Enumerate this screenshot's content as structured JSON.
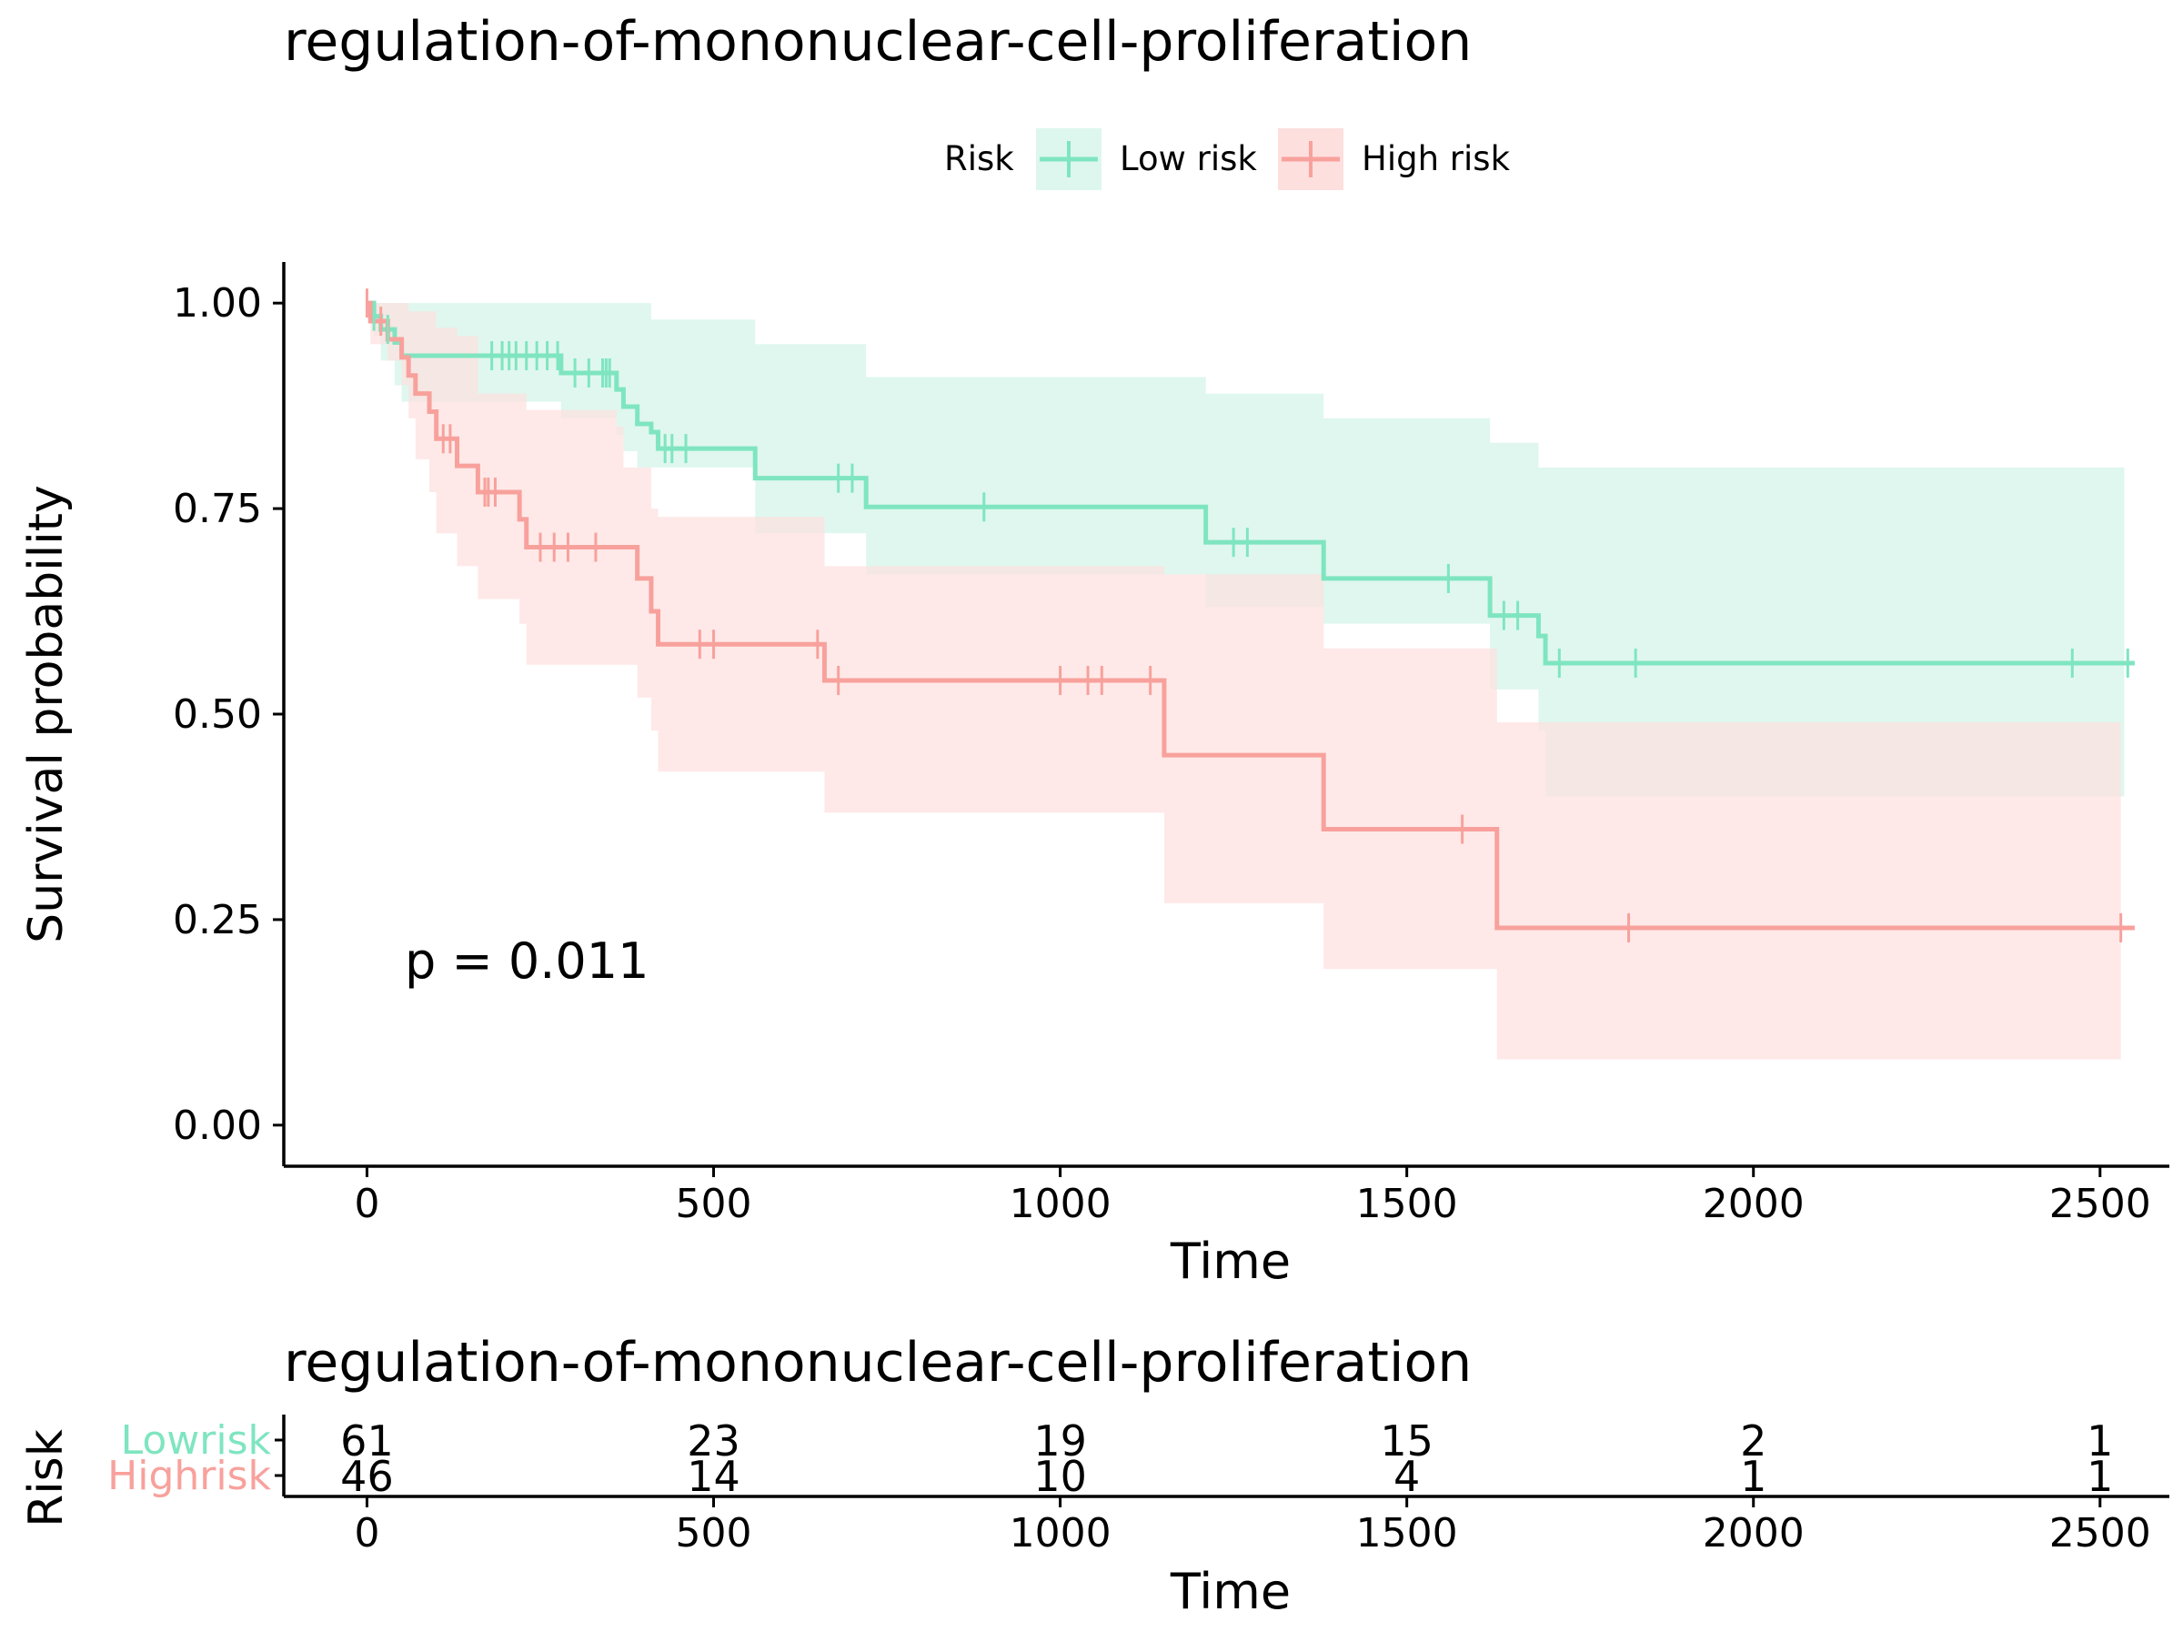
{
  "chart_data": [
    {
      "type": "line",
      "subtype": "kaplan-meier",
      "title": "regulation-of-mononuclear-cell-proliferation",
      "xlabel": "Time",
      "ylabel": "Survival probability",
      "xlim": [
        -120,
        2600
      ],
      "ylim": [
        -0.05,
        1.05
      ],
      "x_ticks": [
        0,
        500,
        1000,
        1500,
        2000,
        2500
      ],
      "x_tick_labels": [
        "0",
        "500",
        "1000",
        "1500",
        "2000",
        "2500"
      ],
      "y_ticks": [
        0,
        0.25,
        0.5,
        0.75,
        1
      ],
      "y_tick_labels": [
        "0.00",
        "0.25",
        "0.50",
        "0.75",
        "1.00"
      ],
      "grid": false,
      "legend": {
        "title": "Risk",
        "position": "top"
      },
      "annotation": "p = 0.011",
      "series": [
        {
          "name": "Low risk",
          "color": "#7FE5C1",
          "fill": "#DDF7EE",
          "steps": [
            [
              0,
              1.0
            ],
            [
              10,
              0.984
            ],
            [
              20,
              0.968
            ],
            [
              40,
              0.952
            ],
            [
              50,
              0.936
            ],
            [
              280,
              0.915
            ],
            [
              360,
              0.895
            ],
            [
              370,
              0.874
            ],
            [
              390,
              0.853
            ],
            [
              410,
              0.843
            ],
            [
              420,
              0.823
            ],
            [
              560,
              0.787
            ],
            [
              720,
              0.752
            ],
            [
              1210,
              0.709
            ],
            [
              1380,
              0.665
            ],
            [
              1620,
              0.62
            ],
            [
              1690,
              0.595
            ],
            [
              1700,
              0.562
            ],
            [
              2550,
              0.562
            ]
          ],
          "ci_lower": [
            [
              0,
              1.0
            ],
            [
              10,
              0.96
            ],
            [
              20,
              0.93
            ],
            [
              40,
              0.9
            ],
            [
              50,
              0.88
            ],
            [
              280,
              0.86
            ],
            [
              360,
              0.84
            ],
            [
              370,
              0.82
            ],
            [
              390,
              0.8
            ],
            [
              410,
              0.8
            ],
            [
              420,
              0.8
            ],
            [
              560,
              0.72
            ],
            [
              720,
              0.67
            ],
            [
              1210,
              0.63
            ],
            [
              1380,
              0.61
            ],
            [
              1620,
              0.53
            ],
            [
              1690,
              0.48
            ],
            [
              1700,
              0.4
            ],
            [
              2535,
              0.4
            ]
          ],
          "ci_upper": [
            [
              0,
              1.0
            ],
            [
              400,
              1.0
            ],
            [
              410,
              0.98
            ],
            [
              560,
              0.95
            ],
            [
              720,
              0.91
            ],
            [
              1210,
              0.89
            ],
            [
              1380,
              0.86
            ],
            [
              1620,
              0.83
            ],
            [
              1690,
              0.8
            ],
            [
              2535,
              0.8
            ]
          ],
          "censor_times": [
            10,
            30,
            180,
            195,
            205,
            215,
            230,
            245,
            260,
            275,
            300,
            320,
            340,
            345,
            350,
            430,
            440,
            460,
            680,
            700,
            890,
            1250,
            1270,
            1560,
            1640,
            1660,
            1720,
            1830,
            2460,
            2540
          ]
        },
        {
          "name": "High risk",
          "color": "#F8A19C",
          "fill": "#FDDFDE",
          "steps": [
            [
              0,
              1.0
            ],
            [
              5,
              0.978
            ],
            [
              30,
              0.956
            ],
            [
              50,
              0.934
            ],
            [
              60,
              0.912
            ],
            [
              70,
              0.89
            ],
            [
              90,
              0.868
            ],
            [
              100,
              0.835
            ],
            [
              130,
              0.802
            ],
            [
              160,
              0.77
            ],
            [
              220,
              0.737
            ],
            [
              230,
              0.703
            ],
            [
              390,
              0.665
            ],
            [
              410,
              0.625
            ],
            [
              420,
              0.585
            ],
            [
              660,
              0.541
            ],
            [
              1150,
              0.45
            ],
            [
              1380,
              0.36
            ],
            [
              1630,
              0.24
            ],
            [
              2550,
              0.24
            ]
          ],
          "ci_lower": [
            [
              0,
              1.0
            ],
            [
              5,
              0.95
            ],
            [
              30,
              0.93
            ],
            [
              50,
              0.9
            ],
            [
              60,
              0.86
            ],
            [
              70,
              0.81
            ],
            [
              90,
              0.77
            ],
            [
              100,
              0.72
            ],
            [
              130,
              0.68
            ],
            [
              160,
              0.64
            ],
            [
              220,
              0.61
            ],
            [
              230,
              0.56
            ],
            [
              390,
              0.52
            ],
            [
              410,
              0.48
            ],
            [
              420,
              0.43
            ],
            [
              660,
              0.38
            ],
            [
              1150,
              0.27
            ],
            [
              1380,
              0.19
            ],
            [
              1630,
              0.08
            ],
            [
              2530,
              0.08
            ]
          ],
          "ci_upper": [
            [
              0,
              1.0
            ],
            [
              60,
              0.99
            ],
            [
              100,
              0.97
            ],
            [
              130,
              0.96
            ],
            [
              160,
              0.89
            ],
            [
              230,
              0.87
            ],
            [
              360,
              0.85
            ],
            [
              370,
              0.8
            ],
            [
              390,
              0.8
            ],
            [
              410,
              0.75
            ],
            [
              420,
              0.74
            ],
            [
              660,
              0.68
            ],
            [
              1150,
              0.67
            ],
            [
              1380,
              0.58
            ],
            [
              1630,
              0.49
            ],
            [
              2530,
              0.49
            ]
          ],
          "censor_times": [
            0,
            20,
            110,
            120,
            170,
            175,
            185,
            250,
            270,
            290,
            330,
            480,
            500,
            650,
            680,
            1000,
            1040,
            1060,
            1130,
            1580,
            1820,
            2530
          ]
        }
      ]
    },
    {
      "type": "table",
      "subtype": "risk-table",
      "title": "regulation-of-mononuclear-cell-proliferation",
      "xlabel": "Time",
      "ylabel": "Risk",
      "xlim": [
        -120,
        2600
      ],
      "x_ticks": [
        0,
        500,
        1000,
        1500,
        2000,
        2500
      ],
      "x_tick_labels": [
        "0",
        "500",
        "1000",
        "1500",
        "2000",
        "2500"
      ],
      "rows": [
        {
          "label": "Lowrisk",
          "color": "#7FE5C1",
          "counts": [
            61,
            23,
            19,
            15,
            2,
            1
          ]
        },
        {
          "label": "Highrisk",
          "color": "#F8A19C",
          "counts": [
            46,
            14,
            10,
            4,
            1,
            1
          ]
        }
      ]
    }
  ]
}
